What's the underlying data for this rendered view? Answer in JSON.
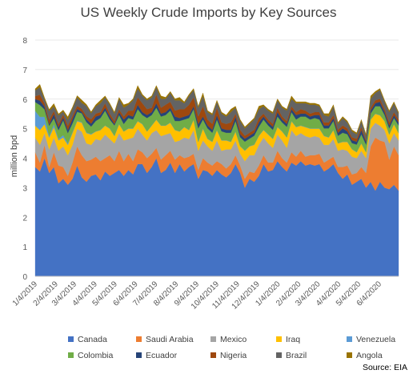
{
  "chart_data": {
    "type": "area",
    "stacked": true,
    "title": "US Weekly Crude Imports by Key Sources",
    "ylabel": "million bpd",
    "xlabel": "",
    "ylim": [
      0,
      8
    ],
    "yticks": [
      0,
      1,
      2,
      3,
      4,
      5,
      6,
      7,
      8
    ],
    "x_tick_labels": [
      "1/4/2019",
      "2/4/2019",
      "3/4/2019",
      "4/4/2019",
      "5/4/2019",
      "6/4/2019",
      "7/4/2019",
      "8/4/2019",
      "9/4/2019",
      "10/4/2019",
      "11/4/2019",
      "12/4/2019",
      "1/4/2020",
      "2/4/2020",
      "3/4/2020",
      "4/4/2020",
      "5/4/2020",
      "6/4/2020"
    ],
    "x": [
      "1/4/2019",
      "1/11/2019",
      "1/18/2019",
      "1/25/2019",
      "2/1/2019",
      "2/8/2019",
      "2/15/2019",
      "2/22/2019",
      "3/1/2019",
      "3/8/2019",
      "3/15/2019",
      "3/22/2019",
      "3/29/2019",
      "4/5/2019",
      "4/12/2019",
      "4/19/2019",
      "4/26/2019",
      "5/3/2019",
      "5/10/2019",
      "5/17/2019",
      "5/24/2019",
      "5/31/2019",
      "6/7/2019",
      "6/14/2019",
      "6/21/2019",
      "6/28/2019",
      "7/5/2019",
      "7/12/2019",
      "7/19/2019",
      "7/26/2019",
      "8/2/2019",
      "8/9/2019",
      "8/16/2019",
      "8/23/2019",
      "8/30/2019",
      "9/6/2019",
      "9/13/2019",
      "9/20/2019",
      "9/27/2019",
      "10/4/2019",
      "10/11/2019",
      "10/18/2019",
      "10/25/2019",
      "11/1/2019",
      "11/8/2019",
      "11/15/2019",
      "11/22/2019",
      "11/29/2019",
      "12/6/2019",
      "12/13/2019",
      "12/20/2019",
      "12/27/2019",
      "1/3/2020",
      "1/10/2020",
      "1/17/2020",
      "1/24/2020",
      "1/31/2020",
      "2/7/2020",
      "2/14/2020",
      "2/21/2020",
      "2/28/2020",
      "3/6/2020",
      "3/13/2020",
      "3/20/2020",
      "3/27/2020",
      "4/3/2020",
      "4/10/2020",
      "4/17/2020",
      "4/24/2020",
      "5/1/2020",
      "5/8/2020",
      "5/15/2020",
      "5/22/2020",
      "5/29/2020",
      "6/5/2020",
      "6/12/2020",
      "6/19/2020",
      "6/26/2020",
      "7/3/2020"
    ],
    "legend_position": "bottom",
    "series": [
      {
        "name": "Canada",
        "color": "#4472C4",
        "values": [
          3.7,
          3.55,
          4.0,
          3.5,
          3.7,
          3.15,
          3.3,
          3.1,
          3.3,
          3.75,
          3.35,
          3.2,
          3.4,
          3.45,
          3.25,
          3.55,
          3.4,
          3.5,
          3.6,
          3.4,
          3.6,
          3.45,
          3.8,
          3.8,
          3.5,
          3.7,
          4.0,
          3.5,
          3.6,
          3.85,
          3.5,
          3.8,
          3.55,
          3.7,
          3.8,
          3.3,
          3.6,
          3.55,
          3.4,
          3.6,
          3.45,
          3.35,
          3.5,
          3.8,
          3.5,
          3.0,
          3.3,
          3.2,
          3.4,
          3.8,
          3.55,
          3.6,
          3.9,
          3.7,
          3.55,
          3.85,
          3.75,
          3.9,
          3.75,
          3.8,
          3.75,
          3.8,
          3.55,
          3.65,
          3.8,
          3.5,
          3.3,
          3.45,
          3.1,
          3.2,
          3.3,
          3.0,
          3.2,
          2.9,
          3.2,
          3.0,
          2.95,
          3.1,
          2.9
        ]
      },
      {
        "name": "Saudi Arabia",
        "color": "#ED7D31",
        "values": [
          0.5,
          0.3,
          0.45,
          0.2,
          0.5,
          0.6,
          0.4,
          0.3,
          0.55,
          0.65,
          0.75,
          0.7,
          0.55,
          0.6,
          0.65,
          0.45,
          0.7,
          0.4,
          0.65,
          0.5,
          0.55,
          0.45,
          0.5,
          0.4,
          0.5,
          0.45,
          0.35,
          0.45,
          0.5,
          0.4,
          0.45,
          0.3,
          0.45,
          0.35,
          0.35,
          0.3,
          0.4,
          0.3,
          0.35,
          0.3,
          0.35,
          0.3,
          0.3,
          0.3,
          0.25,
          0.3,
          0.25,
          0.3,
          0.35,
          0.3,
          0.3,
          0.25,
          0.35,
          0.3,
          0.3,
          0.35,
          0.3,
          0.35,
          0.3,
          0.3,
          0.35,
          0.35,
          0.3,
          0.3,
          0.25,
          0.2,
          0.4,
          0.3,
          0.35,
          0.3,
          0.4,
          0.5,
          1.2,
          1.8,
          1.4,
          1.55,
          1.0,
          1.3,
          1.2
        ]
      },
      {
        "name": "Mexico",
        "color": "#A5A5A5",
        "values": [
          0.5,
          0.6,
          0.4,
          0.6,
          0.5,
          0.5,
          0.7,
          0.7,
          0.6,
          0.6,
          0.8,
          0.6,
          0.5,
          0.6,
          0.7,
          0.8,
          0.55,
          0.6,
          0.6,
          0.7,
          0.5,
          0.8,
          0.7,
          0.6,
          0.6,
          0.7,
          0.6,
          0.8,
          0.7,
          0.6,
          0.6,
          0.5,
          0.7,
          0.6,
          0.8,
          0.65,
          0.6,
          0.55,
          0.5,
          0.7,
          0.45,
          0.65,
          0.5,
          0.5,
          0.4,
          0.6,
          0.55,
          0.6,
          0.7,
          0.6,
          0.65,
          0.5,
          0.55,
          0.6,
          0.5,
          0.75,
          0.7,
          0.6,
          0.7,
          0.6,
          0.65,
          0.55,
          0.6,
          0.5,
          0.6,
          0.55,
          0.6,
          0.5,
          0.6,
          0.5,
          0.55,
          0.5,
          0.6,
          0.5,
          0.5,
          0.4,
          0.55,
          0.45,
          0.5
        ]
      },
      {
        "name": "Iraq",
        "color": "#FFC000",
        "values": [
          0.4,
          0.5,
          0.3,
          0.4,
          0.35,
          0.35,
          0.3,
          0.35,
          0.4,
          0.25,
          0.3,
          0.35,
          0.35,
          0.25,
          0.35,
          0.3,
          0.35,
          0.25,
          0.3,
          0.3,
          0.35,
          0.3,
          0.25,
          0.35,
          0.3,
          0.25,
          0.35,
          0.35,
          0.3,
          0.35,
          0.4,
          0.3,
          0.35,
          0.3,
          0.35,
          0.3,
          0.4,
          0.25,
          0.3,
          0.35,
          0.35,
          0.3,
          0.25,
          0.3,
          0.25,
          0.35,
          0.3,
          0.35,
          0.3,
          0.25,
          0.3,
          0.3,
          0.25,
          0.3,
          0.35,
          0.3,
          0.3,
          0.25,
          0.3,
          0.3,
          0.25,
          0.3,
          0.3,
          0.25,
          0.3,
          0.25,
          0.25,
          0.3,
          0.25,
          0.2,
          0.25,
          0.2,
          0.3,
          0.3,
          0.35,
          0.3,
          0.3,
          0.3,
          0.25
        ]
      },
      {
        "name": "Venezuela",
        "color": "#5B9BD5",
        "values": [
          0.5,
          0.45,
          0.25,
          0.05,
          0.1,
          0.05,
          0.08,
          0.05,
          0.03,
          0.02,
          0.02,
          0.02,
          0.02,
          0.01,
          0.01,
          0.01,
          0.01,
          0.01,
          0.01,
          0.01,
          0.01,
          0.01,
          0.01,
          0.01,
          0.01,
          0.01,
          0.01,
          0.01,
          0.01,
          0.01,
          0.01,
          0.01,
          0.01,
          0.01,
          0.01,
          0.01,
          0.01,
          0.01,
          0.01,
          0.01,
          0.01,
          0.01,
          0.01,
          0.01,
          0.01,
          0.01,
          0.01,
          0.01,
          0.01,
          0.01,
          0.01,
          0.01,
          0.01,
          0.01,
          0.01,
          0.01,
          0.01,
          0.01,
          0.01,
          0.01,
          0.01,
          0.01,
          0.01,
          0.01,
          0.01,
          0.01,
          0.01,
          0.01,
          0.01,
          0.01,
          0.01,
          0.01,
          0.01,
          0.01,
          0.01,
          0.01,
          0.01,
          0.01,
          0.01
        ]
      },
      {
        "name": "Colombia",
        "color": "#70AD47",
        "values": [
          0.3,
          0.4,
          0.25,
          0.35,
          0.2,
          0.3,
          0.5,
          0.35,
          0.3,
          0.3,
          0.3,
          0.35,
          0.25,
          0.35,
          0.4,
          0.5,
          0.3,
          0.35,
          0.3,
          0.25,
          0.35,
          0.3,
          0.4,
          0.3,
          0.45,
          0.35,
          0.4,
          0.3,
          0.35,
          0.4,
          0.3,
          0.35,
          0.25,
          0.4,
          0.35,
          0.45,
          0.3,
          0.35,
          0.3,
          0.35,
          0.3,
          0.25,
          0.3,
          0.35,
          0.3,
          0.3,
          0.25,
          0.3,
          0.3,
          0.35,
          0.3,
          0.3,
          0.35,
          0.3,
          0.35,
          0.3,
          0.25,
          0.3,
          0.35,
          0.3,
          0.35,
          0.3,
          0.25,
          0.3,
          0.3,
          0.25,
          0.3,
          0.25,
          0.2,
          0.25,
          0.3,
          0.25,
          0.2,
          0.25,
          0.3,
          0.2,
          0.2,
          0.2,
          0.25
        ]
      },
      {
        "name": "Ecuador",
        "color": "#264478",
        "values": [
          0.1,
          0.15,
          0.1,
          0.05,
          0.15,
          0.1,
          0.1,
          0.1,
          0.15,
          0.1,
          0.05,
          0.1,
          0.1,
          0.15,
          0.1,
          0.1,
          0.1,
          0.05,
          0.1,
          0.15,
          0.1,
          0.1,
          0.15,
          0.1,
          0.1,
          0.1,
          0.15,
          0.1,
          0.1,
          0.1,
          0.15,
          0.1,
          0.1,
          0.1,
          0.1,
          0.15,
          0.1,
          0.1,
          0.1,
          0.15,
          0.1,
          0.1,
          0.1,
          0.15,
          0.1,
          0.1,
          0.1,
          0.1,
          0.15,
          0.1,
          0.1,
          0.1,
          0.15,
          0.1,
          0.1,
          0.1,
          0.15,
          0.1,
          0.1,
          0.1,
          0.1,
          0.15,
          0.1,
          0.1,
          0.1,
          0.1,
          0.15,
          0.1,
          0.1,
          0.1,
          0.15,
          0.1,
          0.1,
          0.1,
          0.15,
          0.1,
          0.1,
          0.1,
          0.1
        ]
      },
      {
        "name": "Nigeria",
        "color": "#9E480E",
        "values": [
          0.1,
          0.2,
          0.1,
          0.15,
          0.1,
          0.1,
          0.1,
          0.15,
          0.1,
          0.1,
          0.1,
          0.1,
          0.15,
          0.1,
          0.1,
          0.15,
          0.1,
          0.1,
          0.1,
          0.1,
          0.15,
          0.2,
          0.25,
          0.3,
          0.2,
          0.15,
          0.3,
          0.2,
          0.25,
          0.2,
          0.2,
          0.3,
          0.25,
          0.35,
          0.3,
          0.25,
          0.35,
          0.2,
          0.2,
          0.25,
          0.2,
          0.2,
          0.25,
          0.1,
          0.15,
          0.1,
          0.1,
          0.1,
          0.15,
          0.1,
          0.1,
          0.1,
          0.15,
          0.1,
          0.1,
          0.1,
          0.1,
          0.15,
          0.1,
          0.1,
          0.1,
          0.1,
          0.1,
          0.1,
          0.1,
          0.1,
          0.1,
          0.1,
          0.1,
          0.1,
          0.1,
          0.05,
          0.1,
          0.1,
          0.1,
          0.1,
          0.1,
          0.1,
          0.1
        ]
      },
      {
        "name": "Brazil",
        "color": "#636363",
        "values": [
          0.2,
          0.25,
          0.15,
          0.3,
          0.15,
          0.3,
          0.1,
          0.2,
          0.25,
          0.3,
          0.2,
          0.35,
          0.2,
          0.25,
          0.3,
          0.2,
          0.3,
          0.25,
          0.35,
          0.3,
          0.2,
          0.35,
          0.3,
          0.25,
          0.3,
          0.35,
          0.25,
          0.3,
          0.2,
          0.3,
          0.35,
          0.3,
          0.2,
          0.3,
          0.25,
          0.3,
          0.35,
          0.25,
          0.3,
          0.2,
          0.3,
          0.25,
          0.35,
          0.2,
          0.3,
          0.25,
          0.3,
          0.35,
          0.3,
          0.25,
          0.3,
          0.35,
          0.25,
          0.3,
          0.35,
          0.25,
          0.3,
          0.2,
          0.25,
          0.3,
          0.25,
          0.2,
          0.25,
          0.2,
          0.3,
          0.2,
          0.25,
          0.2,
          0.2,
          0.15,
          0.2,
          0.15,
          0.3,
          0.25,
          0.3,
          0.25,
          0.35,
          0.3,
          0.2
        ]
      },
      {
        "name": "Angola",
        "color": "#997300",
        "values": [
          0.05,
          0.1,
          0.05,
          0.05,
          0.1,
          0.05,
          0.05,
          0.1,
          0.05,
          0.05,
          0.1,
          0.05,
          0.05,
          0.05,
          0.1,
          0.05,
          0.05,
          0.05,
          0.05,
          0.1,
          0.05,
          0.05,
          0.1,
          0.05,
          0.05,
          0.05,
          0.05,
          0.1,
          0.05,
          0.05,
          0.05,
          0.1,
          0.05,
          0.05,
          0.05,
          0.05,
          0.1,
          0.05,
          0.05,
          0.05,
          0.05,
          0.05,
          0.1,
          0.05,
          0.05,
          0.05,
          0.05,
          0.05,
          0.1,
          0.05,
          0.05,
          0.05,
          0.05,
          0.05,
          0.05,
          0.1,
          0.05,
          0.05,
          0.05,
          0.05,
          0.05,
          0.05,
          0.05,
          0.1,
          0.05,
          0.05,
          0.05,
          0.05,
          0.05,
          0.05,
          0.05,
          0.05,
          0.1,
          0.05,
          0.05,
          0.05,
          0.05,
          0.05,
          0.05
        ]
      }
    ]
  },
  "source": "Source: EIA"
}
